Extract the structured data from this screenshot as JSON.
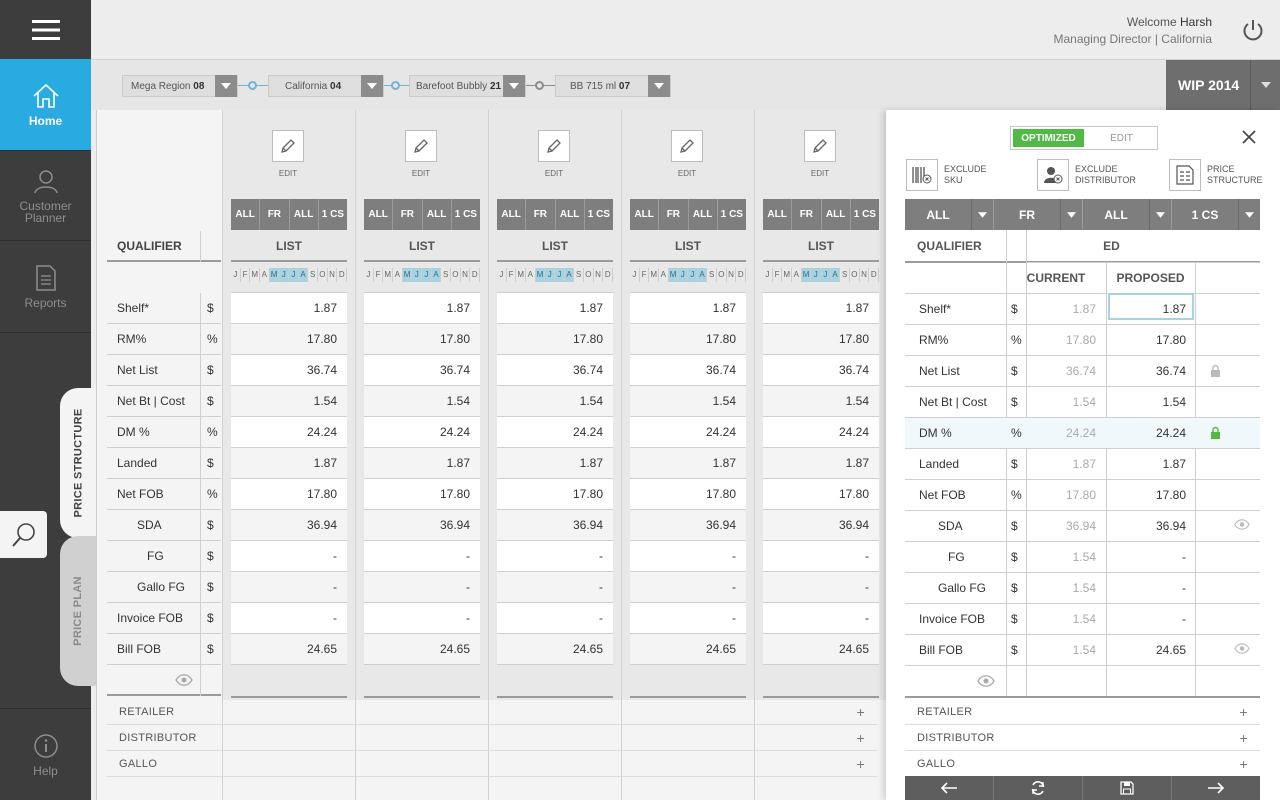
{
  "header": {
    "welcome_prefix": "Welcome",
    "user_name": "Harsh",
    "role": "Managing Director | California"
  },
  "nav": {
    "home": "Home",
    "customer_planner": "Customer Planner",
    "reports": "Reports",
    "help": "Help"
  },
  "side_tabs": {
    "price_structure": "PRICE STRUCTURE",
    "price_plan": "PRICE PLAN"
  },
  "filters": [
    {
      "label": "Mega Region",
      "value": "08"
    },
    {
      "label": "California",
      "value": "04"
    },
    {
      "label": "Barefoot Bubbly",
      "value": "21"
    },
    {
      "label": "BB 715 ml",
      "value": "07"
    }
  ],
  "version": "WIP 2014",
  "grid": {
    "qualifier_header": "QUALIFIER",
    "edit_label": "EDIT",
    "segments": [
      "ALL",
      "FR",
      "ALL",
      "1 CS"
    ],
    "list_header": "LIST",
    "months": [
      "J",
      "F",
      "M",
      "A",
      "M",
      "J",
      "J",
      "A",
      "S",
      "O",
      "N",
      "D"
    ],
    "rows": [
      {
        "label": "Shelf*",
        "unit": "$",
        "value": "1.87"
      },
      {
        "label": "RM%",
        "unit": "%",
        "value": "17.80"
      },
      {
        "label": "Net List",
        "unit": "$",
        "value": "36.74"
      },
      {
        "label": "Net Bt | Cost",
        "unit": "$",
        "value": "1.54"
      },
      {
        "label": "DM %",
        "unit": "%",
        "value": "24.24"
      },
      {
        "label": "Landed",
        "unit": "$",
        "value": "1.87"
      },
      {
        "label": "Net FOB",
        "unit": "%",
        "value": "17.80"
      },
      {
        "label": "SDA",
        "unit": "$",
        "value": "36.94"
      },
      {
        "label": "FG",
        "unit": "$",
        "value": "-"
      },
      {
        "label": "Gallo FG",
        "unit": "$",
        "value": "-"
      },
      {
        "label": "Invoice FOB",
        "unit": "$",
        "value": "-"
      },
      {
        "label": "Bill FOB",
        "unit": "$",
        "value": "24.65"
      }
    ],
    "sections": [
      "RETAILER",
      "DISTRIBUTOR",
      "GALLO"
    ]
  },
  "panel": {
    "toggle": {
      "optimized": "OPTIMIZED",
      "edit": "EDIT"
    },
    "actions": [
      {
        "line1": "EXCLUDE",
        "line2": "SKU"
      },
      {
        "line1": "EXCLUDE",
        "line2": "DISTRIBUTOR"
      },
      {
        "line1": "PRICE",
        "line2": "STRUCTURE"
      }
    ],
    "segments": [
      "ALL",
      "FR",
      "ALL",
      "1 CS"
    ],
    "qualifier_header": "QUALIFIER",
    "group_header": "ED",
    "current_header": "CURRENT",
    "proposed_header": "PROPOSED",
    "rows": [
      {
        "label": "Shelf*",
        "unit": "$",
        "current": "1.87",
        "proposed": "1.87",
        "icon": ""
      },
      {
        "label": "RM%",
        "unit": "%",
        "current": "17.80",
        "proposed": "17.80",
        "icon": ""
      },
      {
        "label": "Net List",
        "unit": "$",
        "current": "36.74",
        "proposed": "36.74",
        "icon": "lock-icon"
      },
      {
        "label": "Net Bt | Cost",
        "unit": "$",
        "current": "1.54",
        "proposed": "1.54",
        "icon": ""
      },
      {
        "label": "DM %",
        "unit": "%",
        "current": "24.24",
        "proposed": "24.24",
        "icon": "lock-open-icon"
      },
      {
        "label": "Landed",
        "unit": "$",
        "current": "1.87",
        "proposed": "1.87",
        "icon": ""
      },
      {
        "label": "Net FOB",
        "unit": "%",
        "current": "17.80",
        "proposed": "17.80",
        "icon": ""
      },
      {
        "label": "SDA",
        "unit": "$",
        "current": "36.94",
        "proposed": "36.94",
        "icon": "eye-icon"
      },
      {
        "label": "FG",
        "unit": "$",
        "current": "1.54",
        "proposed": "-",
        "icon": ""
      },
      {
        "label": "Gallo FG",
        "unit": "$",
        "current": "1.54",
        "proposed": "-",
        "icon": ""
      },
      {
        "label": "Invoice FOB",
        "unit": "$",
        "current": "1.54",
        "proposed": "-",
        "icon": ""
      },
      {
        "label": "Bill FOB",
        "unit": "$",
        "current": "1.54",
        "proposed": "24.65",
        "icon": "eye-icon"
      }
    ],
    "sections": [
      "RETAILER",
      "DISTRIBUTOR",
      "GALLO"
    ]
  },
  "colors": {
    "accent": "#29abe2",
    "optimized": "#52b848",
    "nav_bg": "#3d3d3d",
    "month_highlight": "#a7d2e1"
  }
}
